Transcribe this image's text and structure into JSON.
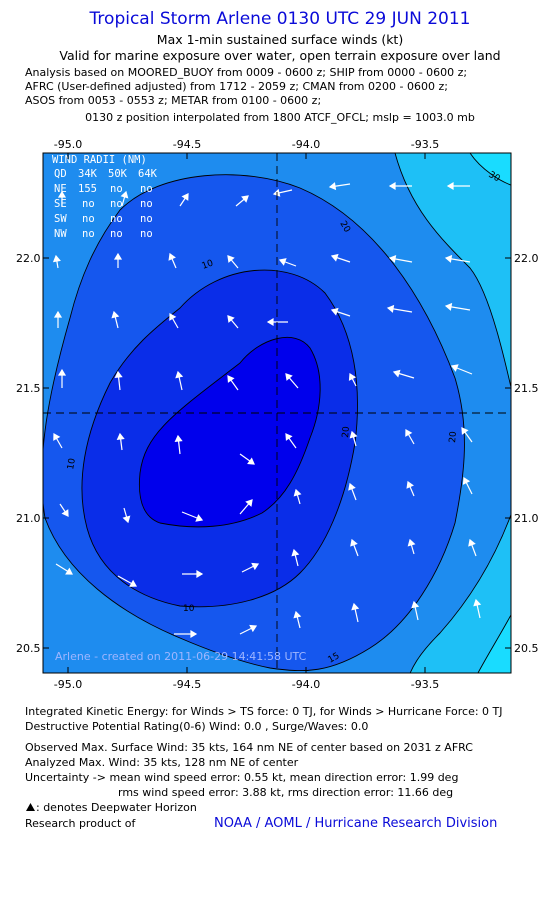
{
  "header": {
    "title": "Tropical Storm Arlene 0130 UTC 29 JUN 2011",
    "subtitle": "Max 1-min sustained surface winds (kt)",
    "validity": "Valid for marine exposure over water, open terrain exposure over land",
    "analysis_lines": [
      "Analysis based on MOORED_BUOY from 0009 - 0600 z; SHIP from 0000 - 0600 z;",
      "AFRC (User-defined adjusted) from 1712 - 2059 z; CMAN from 0200 - 0600 z;",
      "ASOS from 0053 - 0553 z; METAR from 0100 - 0600 z;"
    ],
    "interpolation": "0130 z position interpolated from 1800 ATCF_OFCL; mslp = 1003.0 mb"
  },
  "map": {
    "lon_ticks": [
      "-95.0",
      "-94.5",
      "-94.0",
      "-93.5"
    ],
    "lat_ticks": [
      "22.0",
      "21.5",
      "21.0",
      "20.5"
    ],
    "contour_labels": [
      "10",
      "10",
      "10",
      "20",
      "20",
      "20",
      "30",
      "15"
    ],
    "center": {
      "lon": -94.1,
      "lat": 21.4
    },
    "wind_radii": {
      "title": "WIND RADII (NM)",
      "header": [
        "QD",
        "34K",
        "50K",
        "64K"
      ],
      "rows": [
        [
          "NE",
          "155",
          "no",
          "no"
        ],
        [
          "SE",
          "no",
          "no",
          "no"
        ],
        [
          "SW",
          "no",
          "no",
          "no"
        ],
        [
          "NW",
          "no",
          "no",
          "no"
        ]
      ]
    },
    "watermark": "Arlene - created on 2011-06-29 14:41:58 UTC",
    "colors": {
      "lt10": "#0000ec",
      "b10_15": "#0a2de8",
      "b15_20": "#1557ee",
      "b20_25": "#1e8cef",
      "b25_30": "#1ec0f6",
      "gt30": "#19dcff"
    }
  },
  "footer": {
    "lines": [
      "Integrated Kinetic Energy:  for Winds > TS force: 0 TJ,  for Winds > Hurricane Force: 0 TJ",
      "Destructive Potential Rating(0-6)   Wind: 0.0 , Surge/Waves: 0.0",
      "Observed Max. Surface Wind: 35 kts, 164 nm NE of center based on 2031 z AFRC",
      "Analyzed Max. Wind: 35 kts, 128 nm NE of center",
      "Uncertainty -> mean wind speed error: 0.55 kt,   mean direction error: 1.99 deg",
      "rms wind speed error: 3.88 kt,   rms direction error: 11.66 deg"
    ],
    "legend": ": denotes Deepwater Horizon",
    "research_label": "Research product of",
    "org": "NOAA / AOML / Hurricane Research Division"
  }
}
